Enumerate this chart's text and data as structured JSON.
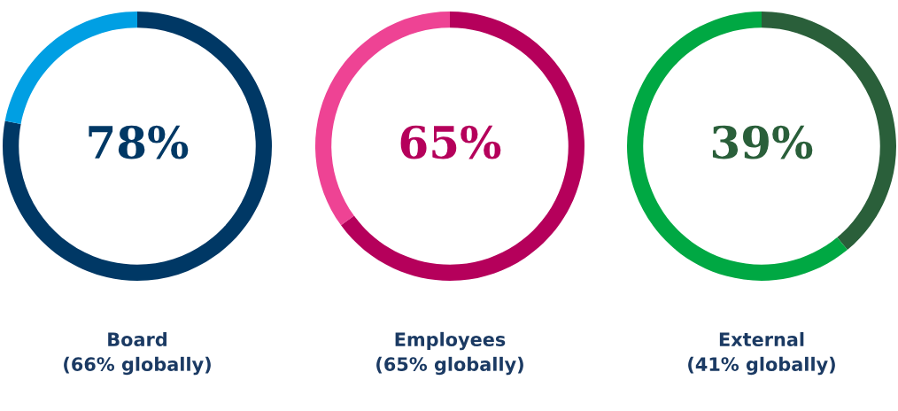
{
  "chart_data": [
    {
      "type": "donut",
      "title": "Board",
      "subtitle": "(66% globally)",
      "categories": [
        null,
        null
      ],
      "values": [
        78,
        22
      ],
      "colors": [
        "#003865",
        "#009fe3"
      ],
      "value_labels": [
        "78%",
        null
      ]
    },
    {
      "type": "donut",
      "title": "Employees",
      "subtitle": "(65% globally)",
      "categories": [
        null,
        null
      ],
      "values": [
        65,
        35
      ],
      "colors": [
        "#b5005b",
        "#ee4394"
      ],
      "value_labels": [
        "65%",
        null
      ]
    },
    {
      "type": "donut",
      "title": "External",
      "subtitle": "(41% globally)",
      "categories": [
        null,
        null
      ],
      "values": [
        39,
        61
      ],
      "colors": [
        "#2a5f3a",
        "#00a843"
      ],
      "value_labels": [
        "39%",
        null
      ]
    }
  ]
}
